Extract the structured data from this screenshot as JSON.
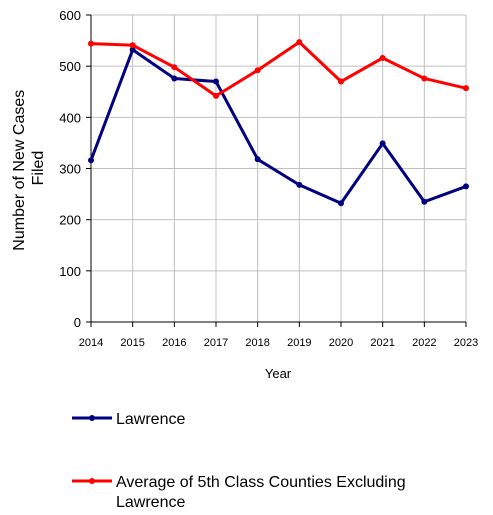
{
  "chart_data": {
    "type": "line",
    "title": "",
    "xlabel": "Year",
    "ylabel": "Number of New Cases Filed",
    "ylabel_lines": [
      "Number of New Cases",
      "Filed"
    ],
    "x": [
      2014,
      2015,
      2016,
      2017,
      2018,
      2019,
      2020,
      2021,
      2022,
      2023
    ],
    "ylim": [
      0,
      600
    ],
    "yticks": [
      0,
      100,
      200,
      300,
      400,
      500,
      600
    ],
    "grid": true,
    "legend_position": "bottom",
    "series": [
      {
        "name": "Lawrence",
        "color": "#000080",
        "values": [
          316,
          532,
          476,
          470,
          318,
          268,
          232,
          349,
          235,
          265
        ]
      },
      {
        "name": "Average of 5th Class Counties Excluding Lawrence",
        "name_lines": [
          "Average of 5th Class Counties Excluding",
          "Lawrence"
        ],
        "color": "#ff0000",
        "values": [
          544,
          541,
          498,
          442,
          492,
          547,
          470,
          516,
          476,
          457
        ]
      }
    ]
  }
}
